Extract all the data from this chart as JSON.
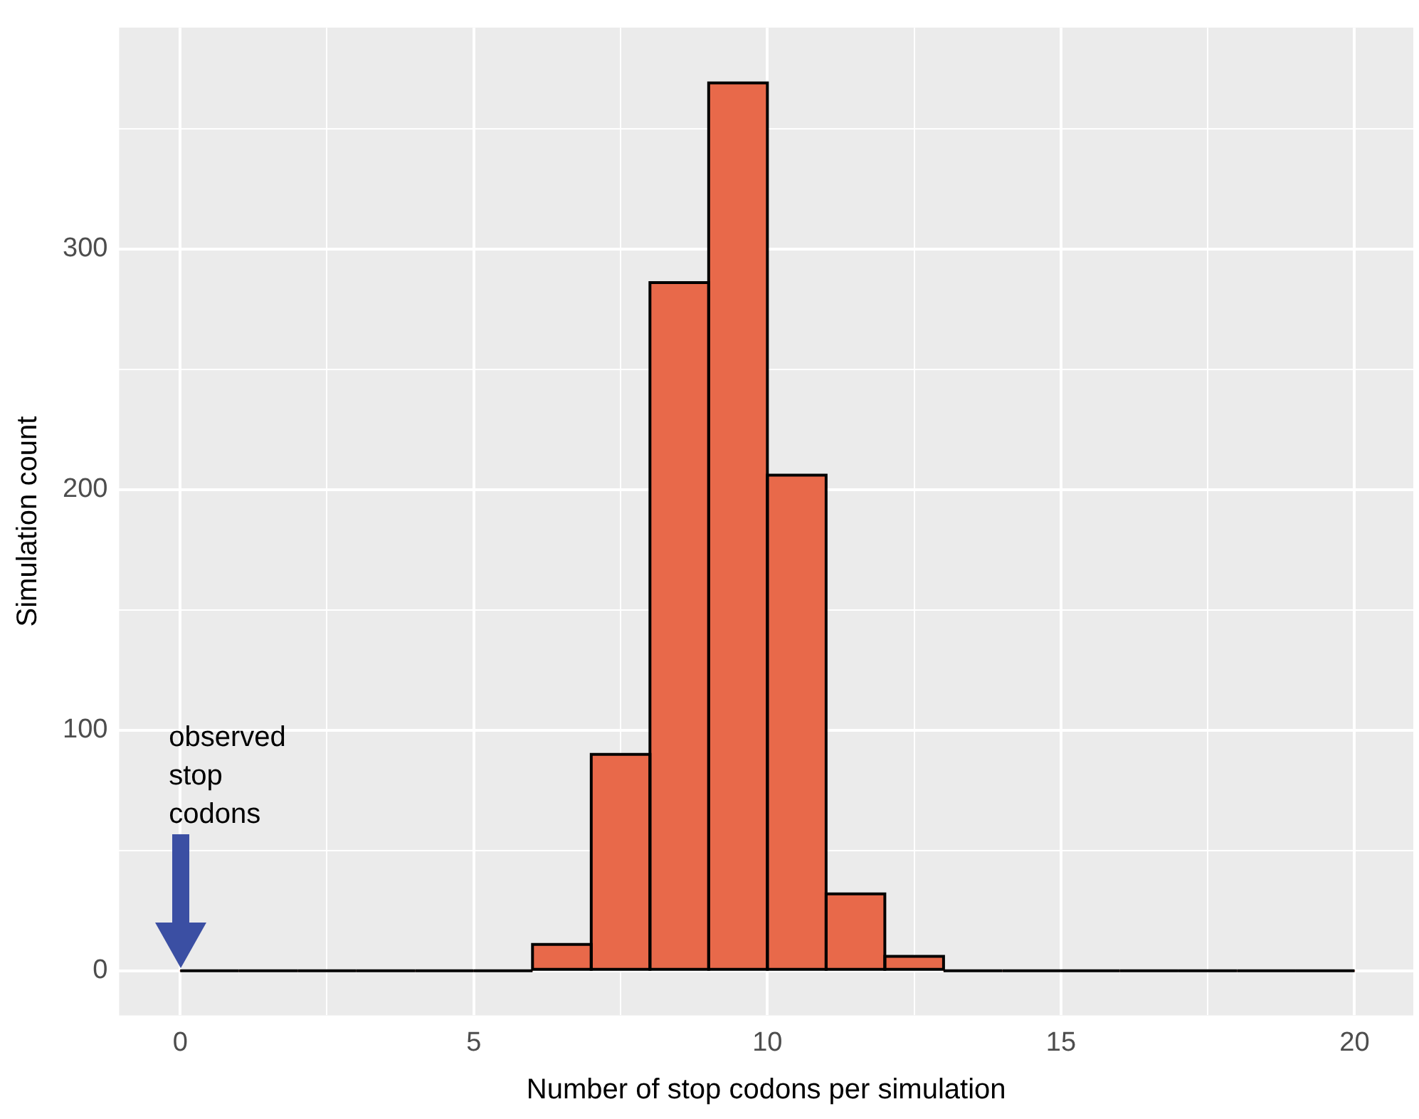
{
  "chart_data": {
    "type": "histogram",
    "xlabel": "Number of stop codons per simulation",
    "ylabel": "Simulation count",
    "bins": [
      0,
      1,
      2,
      3,
      4,
      5,
      6,
      7,
      8,
      9,
      10,
      11,
      12,
      13,
      14,
      15,
      16,
      17,
      18,
      19,
      20
    ],
    "values": [
      0,
      0,
      0,
      0,
      0,
      0,
      11,
      90,
      286,
      369,
      206,
      32,
      6,
      0,
      0,
      0,
      0,
      0,
      0,
      0
    ],
    "color": "#e8694a",
    "xlim": [
      -1.04,
      21.0
    ],
    "ylim": [
      -18.5,
      392
    ],
    "xticks": [
      0,
      {
        "value": 2.5,
        "label": null
      },
      5,
      {
        "value": 7.5,
        "label": null
      },
      10,
      {
        "value": 12.5,
        "label": null
      },
      15,
      {
        "value": 17.5,
        "label": null
      },
      20
    ],
    "yticks": [
      0,
      {
        "value": 50,
        "label": null
      },
      100,
      {
        "value": 150,
        "label": null
      },
      200,
      {
        "value": 250,
        "label": null
      },
      300,
      {
        "value": 350,
        "label": null
      }
    ],
    "grid": true,
    "legend": false,
    "annotations": [
      "observed stop codons"
    ]
  }
}
